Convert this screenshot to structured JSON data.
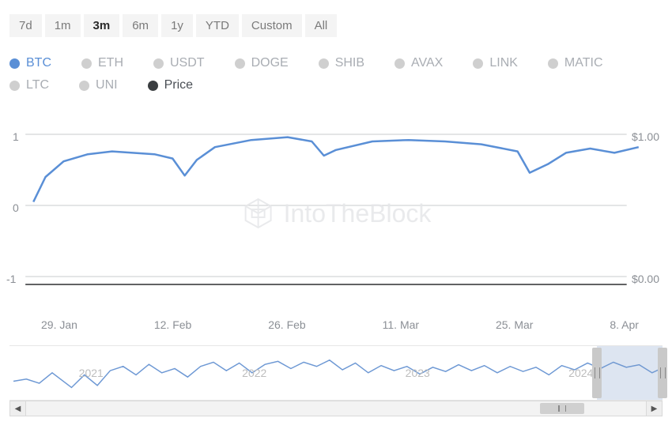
{
  "timeframes": {
    "items": [
      "7d",
      "1m",
      "3m",
      "6m",
      "1y",
      "YTD",
      "Custom",
      "All"
    ],
    "active_index": 2
  },
  "legend": {
    "series": [
      {
        "label": "BTC",
        "color": "#5a8fd6",
        "active": true
      },
      {
        "label": "ETH",
        "color": "#cfcfcf",
        "active": false
      },
      {
        "label": "USDT",
        "color": "#cfcfcf",
        "active": false
      },
      {
        "label": "DOGE",
        "color": "#cfcfcf",
        "active": false
      },
      {
        "label": "SHIB",
        "color": "#cfcfcf",
        "active": false
      },
      {
        "label": "AVAX",
        "color": "#cfcfcf",
        "active": false
      },
      {
        "label": "LINK",
        "color": "#cfcfcf",
        "active": false
      },
      {
        "label": "MATIC",
        "color": "#cfcfcf",
        "active": false
      },
      {
        "label": "LTC",
        "color": "#cfcfcf",
        "active": false
      },
      {
        "label": "UNI",
        "color": "#cfcfcf",
        "active": false
      },
      {
        "label": "Price",
        "color": "#3a3d40",
        "active": false,
        "is_price": true
      }
    ]
  },
  "chart": {
    "type": "line",
    "ylim_left": {
      "min": -1,
      "max": 1,
      "ticks": [
        "1",
        "0",
        "-1"
      ]
    },
    "ylim_right": {
      "ticks": [
        "$1.00",
        "$0.00"
      ]
    },
    "x_ticks": [
      "29. Jan",
      "12. Feb",
      "26. Feb",
      "11. Mar",
      "25. Mar",
      "8. Apr"
    ],
    "line_color": "#5a8fd6",
    "line_width": 2.5,
    "gridline_color": "#999ca0",
    "background_color": "#ffffff",
    "series_btc": {
      "x": [
        0,
        0.02,
        0.05,
        0.09,
        0.13,
        0.2,
        0.23,
        0.25,
        0.27,
        0.3,
        0.36,
        0.42,
        0.46,
        0.48,
        0.5,
        0.56,
        0.62,
        0.68,
        0.74,
        0.8,
        0.82,
        0.85,
        0.88,
        0.92,
        0.96,
        1.0
      ],
      "y": [
        0.05,
        0.4,
        0.62,
        0.72,
        0.76,
        0.72,
        0.66,
        0.42,
        0.64,
        0.82,
        0.92,
        0.96,
        0.9,
        0.7,
        0.78,
        0.9,
        0.92,
        0.9,
        0.86,
        0.76,
        0.46,
        0.58,
        0.74,
        0.8,
        0.74,
        0.82
      ]
    },
    "watermark": "IntoTheBlock"
  },
  "navigator": {
    "line_color": "#6d98d4",
    "years": [
      "2021",
      "2022",
      "2023",
      "2024"
    ],
    "selection": {
      "start_pct": 90,
      "end_pct": 100
    },
    "mini_series": {
      "x": [
        0,
        0.02,
        0.04,
        0.06,
        0.09,
        0.11,
        0.13,
        0.15,
        0.17,
        0.19,
        0.21,
        0.23,
        0.25,
        0.27,
        0.29,
        0.31,
        0.33,
        0.35,
        0.37,
        0.39,
        0.41,
        0.43,
        0.45,
        0.47,
        0.49,
        0.51,
        0.53,
        0.55,
        0.57,
        0.59,
        0.61,
        0.63,
        0.65,
        0.67,
        0.69,
        0.71,
        0.73,
        0.75,
        0.77,
        0.79,
        0.81,
        0.83,
        0.85,
        0.87,
        0.89,
        0.91,
        0.93,
        0.95,
        0.97,
        0.99,
        1.0
      ],
      "y": [
        0.35,
        0.4,
        0.3,
        0.55,
        0.2,
        0.5,
        0.25,
        0.6,
        0.7,
        0.5,
        0.75,
        0.55,
        0.65,
        0.45,
        0.7,
        0.8,
        0.6,
        0.78,
        0.55,
        0.75,
        0.82,
        0.65,
        0.8,
        0.7,
        0.85,
        0.62,
        0.78,
        0.55,
        0.72,
        0.6,
        0.7,
        0.52,
        0.68,
        0.58,
        0.74,
        0.6,
        0.72,
        0.55,
        0.7,
        0.58,
        0.68,
        0.5,
        0.72,
        0.62,
        0.78,
        0.65,
        0.8,
        0.68,
        0.74,
        0.55,
        0.62
      ]
    }
  },
  "scrollbar": {
    "thumb_pos_pct": 90
  }
}
